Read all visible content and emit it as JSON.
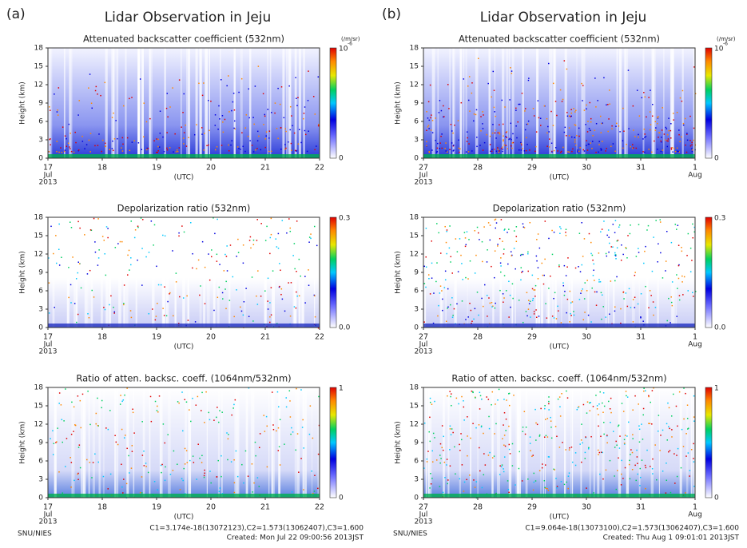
{
  "panels": [
    {
      "label": "(a)",
      "title": "Lidar Observation in Jeju",
      "y_label": "Height (km)",
      "y_ticks": [
        "0",
        "3",
        "6",
        "9",
        "12",
        "15",
        "18"
      ],
      "x_labels": [
        "17",
        "18",
        "19",
        "20",
        "21",
        "22"
      ],
      "month_start": "Jul",
      "year": "2013",
      "x_unit": "(UTC)",
      "plots": [
        {
          "title": "Attenuated backscatter coefficient (532nm)",
          "cbar_top": "10",
          "cbar_exp": "-6",
          "cbar_unit": "(/m/sr)",
          "cbar_bottom": "0"
        },
        {
          "title": "Depolarization ratio (532nm)",
          "cbar_top": "0.3",
          "cbar_bottom": "0.0"
        },
        {
          "title": "Ratio of atten. backsc. coeff. (1064nm/532nm)",
          "cbar_top": "1",
          "cbar_bottom": "0"
        }
      ],
      "footer_left": "SNU/NIES",
      "footer_c": "C1=3.174e-18(13072123),C2=1.573(13062407),C3=1.600",
      "footer_created": "Created: Mon Jul 22 09:00:56 2013JST"
    },
    {
      "label": "(b)",
      "title": "Lidar Observation in Jeju",
      "y_label": "Height (km)",
      "y_ticks": [
        "0",
        "3",
        "6",
        "9",
        "12",
        "15",
        "18"
      ],
      "x_labels": [
        "27",
        "28",
        "29",
        "30",
        "31",
        "1"
      ],
      "month_start": "Jul",
      "month_end": "Aug",
      "year": "2013",
      "x_unit": "(UTC)",
      "plots": [
        {
          "title": "Attenuated backscatter coefficient (532nm)",
          "cbar_top": "10",
          "cbar_exp": "-6",
          "cbar_unit": "(/m/sr)",
          "cbar_bottom": "0"
        },
        {
          "title": "Depolarization ratio (532nm)",
          "cbar_top": "0.3",
          "cbar_bottom": "0.0"
        },
        {
          "title": "Ratio of atten. backsc. coeff. (1064nm/532nm)",
          "cbar_top": "1",
          "cbar_bottom": "0"
        }
      ],
      "footer_left": "SNU/NIES",
      "footer_c": "C1=9.064e-18(13073100),C2=1.573(13062407),C3=1.600",
      "footer_created": "Created: Thu Aug  1 09:01:01 2013JST"
    }
  ]
}
